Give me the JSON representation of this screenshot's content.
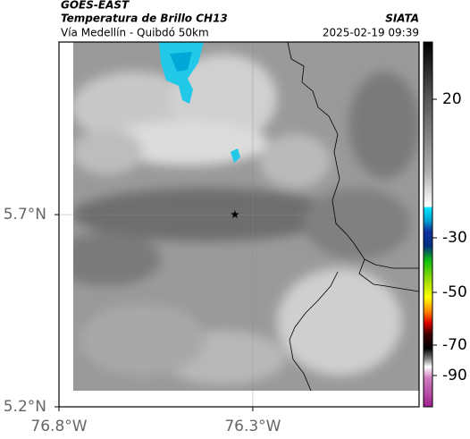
{
  "header": {
    "satellite": "GOES-EAST",
    "title": "Temperatura de Brillo CH13",
    "source": "SIATA",
    "subtitle": "Vía Medellín - Quibdó 50km",
    "datetime": "2025-02-19 09:39"
  },
  "map": {
    "xlim": [
      -76.8,
      -75.871
    ],
    "ylim": [
      5.2,
      6.149
    ],
    "xticks": [
      {
        "value": -76.8,
        "label": "76.8°W"
      },
      {
        "value": -76.3,
        "label": "76.3°W"
      }
    ],
    "yticks": [
      {
        "value": 5.2,
        "label": "5.2°N"
      },
      {
        "value": 5.7,
        "label": "5.7°N"
      }
    ],
    "grid": true,
    "marker": {
      "lon": -76.346,
      "lat": 5.7
    }
  },
  "colorbar": {
    "ticks": [
      20,
      -30,
      -50,
      -70,
      -90
    ]
  }
}
